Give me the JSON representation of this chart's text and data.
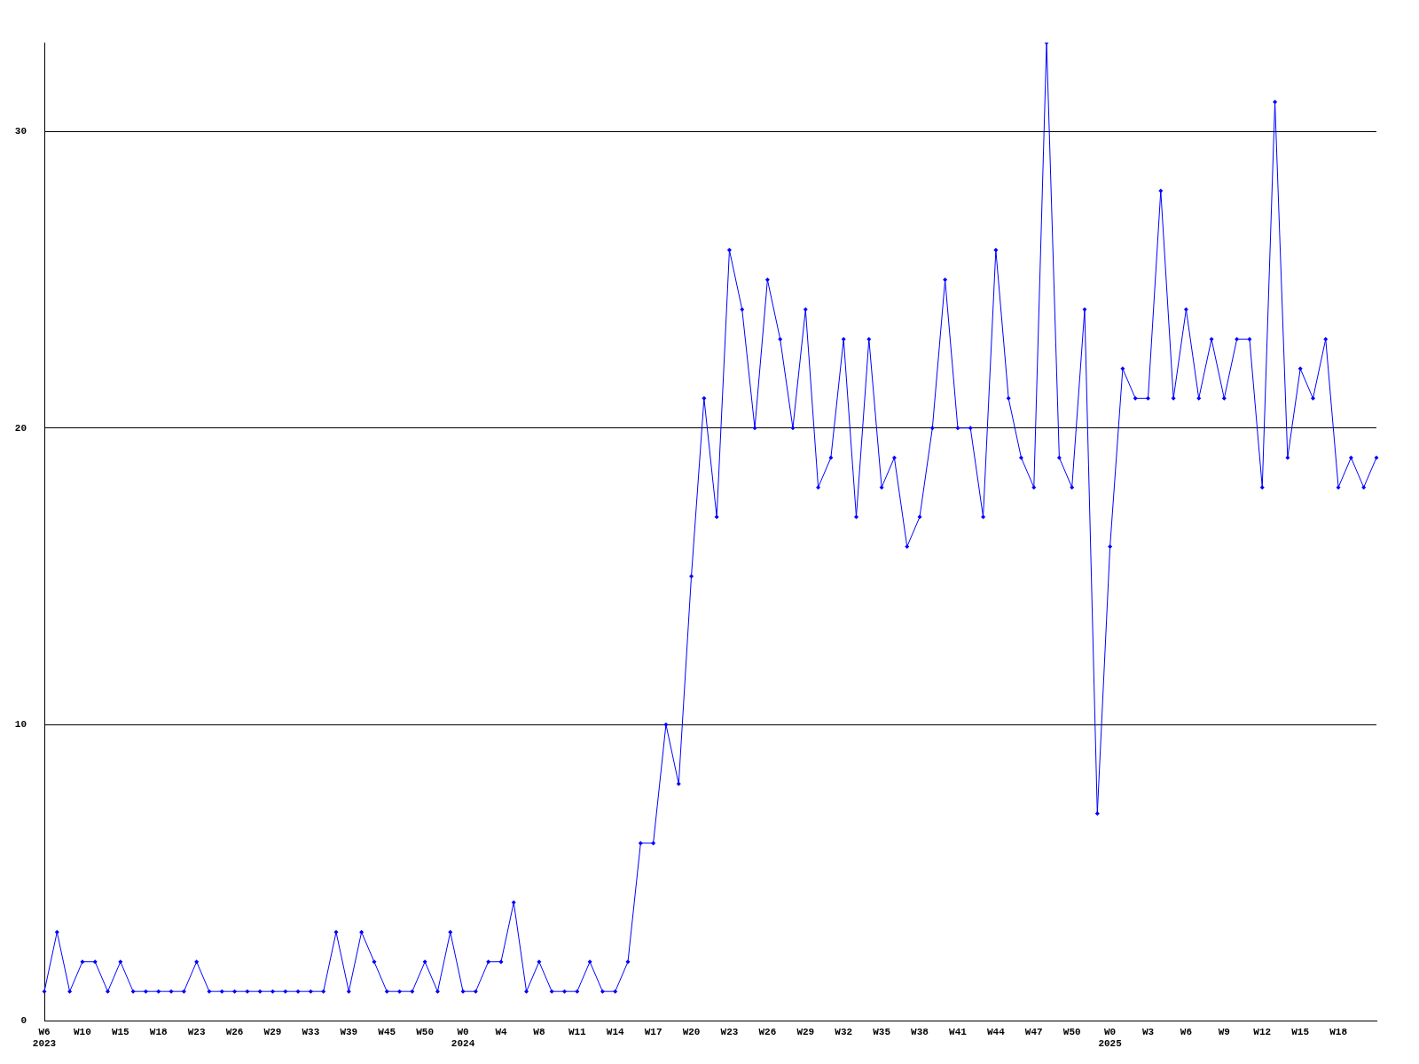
{
  "chart_data": {
    "type": "line",
    "categories": [
      "W6\n2023",
      null,
      null,
      "W10",
      null,
      null,
      "W15",
      null,
      null,
      "W18",
      null,
      null,
      "W23",
      null,
      null,
      "W26",
      null,
      null,
      "W29",
      null,
      null,
      "W33",
      null,
      null,
      "W39",
      null,
      null,
      "W45",
      null,
      null,
      "W50",
      null,
      null,
      "W0\n2024",
      null,
      null,
      "W4",
      null,
      null,
      "W8",
      null,
      null,
      "W11",
      null,
      null,
      "W14",
      null,
      null,
      "W17",
      null,
      null,
      "W20",
      null,
      null,
      "W23",
      null,
      null,
      "W26",
      null,
      null,
      "W29",
      null,
      null,
      "W32",
      null,
      null,
      "W35",
      null,
      null,
      "W38",
      null,
      null,
      "W41",
      null,
      null,
      "W44",
      null,
      null,
      "W47",
      null,
      null,
      "W50",
      null,
      null,
      "W0\n2025",
      null,
      null,
      "W3",
      null,
      null,
      "W6",
      null,
      null,
      "W9",
      null,
      null,
      "W12",
      null,
      null,
      "W15",
      null,
      null,
      "W18",
      null,
      null,
      null
    ],
    "series": [
      {
        "color": "#0000ff",
        "values": [
          1,
          3,
          1,
          2,
          2,
          1,
          2,
          1,
          1,
          1,
          1,
          1,
          2,
          1,
          1,
          1,
          1,
          1,
          1,
          1,
          1,
          1,
          1,
          3,
          1,
          3,
          2,
          1,
          1,
          1,
          2,
          1,
          3,
          1,
          1,
          2,
          2,
          4,
          1,
          2,
          1,
          1,
          1,
          2,
          1,
          1,
          2,
          6,
          6,
          10,
          8,
          15,
          21,
          17,
          26,
          24,
          20,
          25,
          23,
          20,
          24,
          18,
          19,
          23,
          17,
          23,
          18,
          19,
          16,
          17,
          20,
          25,
          20,
          20,
          17,
          26,
          21,
          19,
          18,
          33,
          19,
          18,
          24,
          7,
          16,
          22,
          21,
          21,
          28,
          21,
          24,
          21,
          23,
          21,
          23,
          23,
          18,
          31,
          19,
          22,
          21,
          23,
          18,
          19,
          18,
          19
        ]
      }
    ],
    "ylim": [
      0,
      33
    ],
    "yticks": [
      0,
      10,
      20,
      30
    ],
    "grid": "y",
    "legend": false,
    "marker": "diamond",
    "line_style": "solid"
  }
}
